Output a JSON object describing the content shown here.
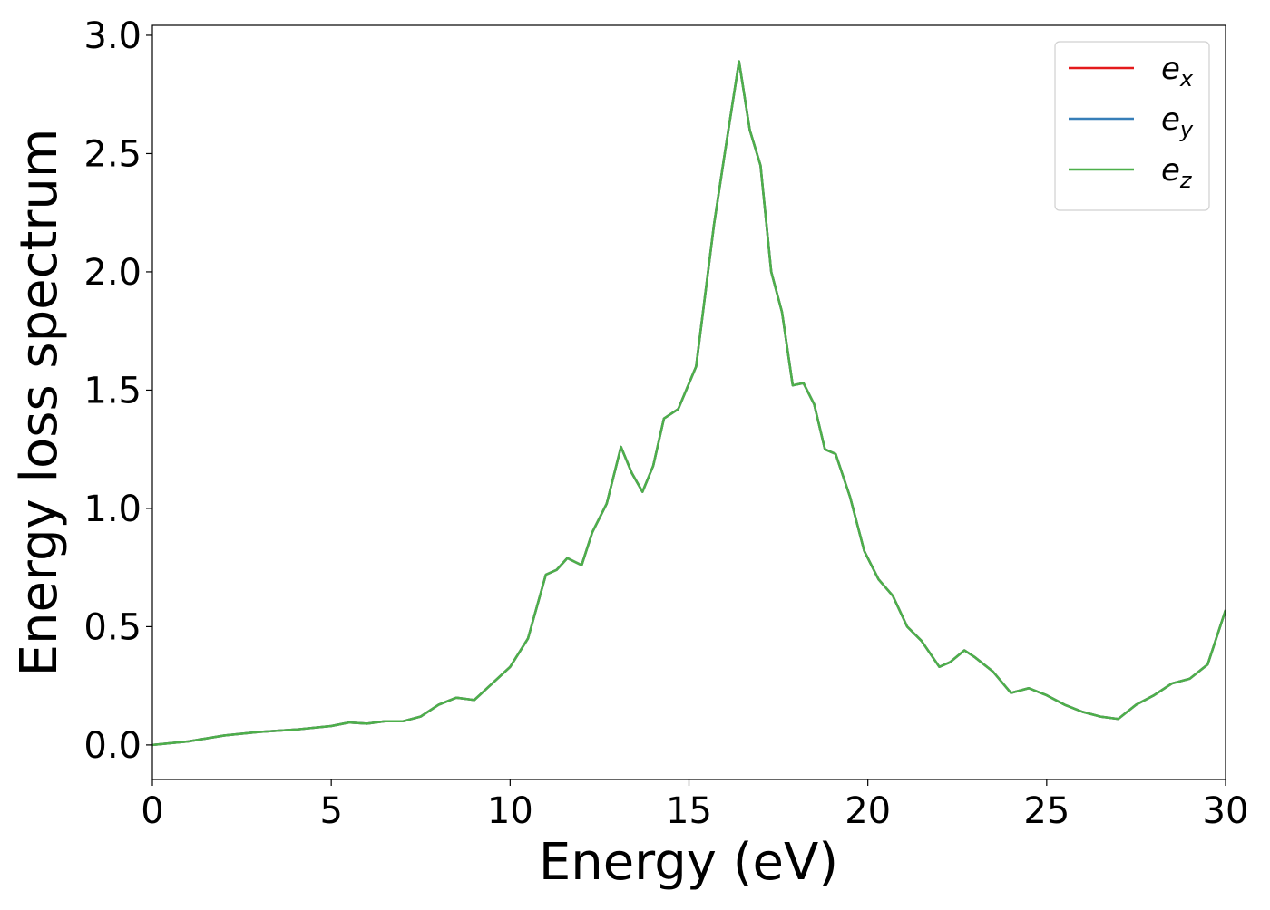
{
  "chart_data": {
    "type": "line",
    "xlabel": "Energy (eV)",
    "ylabel": "Energy loss spectrum",
    "x": [
      0,
      1,
      2,
      3,
      4,
      5,
      5.5,
      6,
      6.5,
      7,
      7.5,
      8,
      8.5,
      9,
      9.5,
      10,
      10.5,
      11,
      11.3,
      11.6,
      12,
      12.3,
      12.7,
      13.1,
      13.4,
      13.7,
      14,
      14.3,
      14.7,
      15.2,
      15.7,
      16.0,
      16.4,
      16.7,
      17.0,
      17.3,
      17.6,
      17.9,
      18.2,
      18.5,
      18.8,
      19.1,
      19.5,
      19.9,
      20.3,
      20.7,
      21.1,
      21.5,
      22.0,
      22.3,
      22.7,
      23.0,
      23.5,
      24.0,
      24.5,
      25.0,
      25.5,
      26.0,
      26.5,
      27.0,
      27.5,
      28.0,
      28.5,
      29.0,
      29.5,
      30.0
    ],
    "series": [
      {
        "name": "e_x",
        "color": "#e41a1c",
        "values": [
          0.0,
          0.015,
          0.04,
          0.055,
          0.065,
          0.08,
          0.095,
          0.09,
          0.1,
          0.1,
          0.12,
          0.17,
          0.2,
          0.19,
          0.26,
          0.33,
          0.45,
          0.72,
          0.74,
          0.79,
          0.76,
          0.9,
          1.02,
          1.26,
          1.15,
          1.07,
          1.18,
          1.38,
          1.42,
          1.6,
          2.2,
          2.5,
          2.89,
          2.6,
          2.45,
          2.0,
          1.83,
          1.52,
          1.53,
          1.44,
          1.25,
          1.23,
          1.05,
          0.82,
          0.7,
          0.63,
          0.5,
          0.44,
          0.33,
          0.35,
          0.4,
          0.37,
          0.31,
          0.22,
          0.24,
          0.21,
          0.17,
          0.14,
          0.12,
          0.11,
          0.17,
          0.21,
          0.26,
          0.28,
          0.34,
          0.57
        ]
      },
      {
        "name": "e_y",
        "color": "#377eb8",
        "values": [
          0.0,
          0.015,
          0.04,
          0.055,
          0.065,
          0.08,
          0.095,
          0.09,
          0.1,
          0.1,
          0.12,
          0.17,
          0.2,
          0.19,
          0.26,
          0.33,
          0.45,
          0.72,
          0.74,
          0.79,
          0.76,
          0.9,
          1.02,
          1.26,
          1.15,
          1.07,
          1.18,
          1.38,
          1.42,
          1.6,
          2.2,
          2.5,
          2.89,
          2.6,
          2.45,
          2.0,
          1.83,
          1.52,
          1.53,
          1.44,
          1.25,
          1.23,
          1.05,
          0.82,
          0.7,
          0.63,
          0.5,
          0.44,
          0.33,
          0.35,
          0.4,
          0.37,
          0.31,
          0.22,
          0.24,
          0.21,
          0.17,
          0.14,
          0.12,
          0.11,
          0.17,
          0.21,
          0.26,
          0.28,
          0.34,
          0.57
        ]
      },
      {
        "name": "e_z",
        "color": "#4daf4a",
        "values": [
          0.0,
          0.015,
          0.04,
          0.055,
          0.065,
          0.08,
          0.095,
          0.09,
          0.1,
          0.1,
          0.12,
          0.17,
          0.2,
          0.19,
          0.26,
          0.33,
          0.45,
          0.72,
          0.74,
          0.79,
          0.76,
          0.9,
          1.02,
          1.26,
          1.15,
          1.07,
          1.18,
          1.38,
          1.42,
          1.6,
          2.2,
          2.5,
          2.89,
          2.6,
          2.45,
          2.0,
          1.83,
          1.52,
          1.53,
          1.44,
          1.25,
          1.23,
          1.05,
          0.82,
          0.7,
          0.63,
          0.5,
          0.44,
          0.33,
          0.35,
          0.4,
          0.37,
          0.31,
          0.22,
          0.24,
          0.21,
          0.17,
          0.14,
          0.12,
          0.11,
          0.17,
          0.21,
          0.26,
          0.28,
          0.34,
          0.57
        ]
      }
    ],
    "xlim": [
      0,
      30
    ],
    "xticks": [
      0,
      5,
      10,
      15,
      20,
      25,
      30
    ],
    "ylim": [
      -0.146,
      3.042
    ],
    "yticks": [
      {
        "value": 0,
        "label": "0.0"
      },
      {
        "value": 0.5,
        "label": "0.5"
      },
      {
        "value": 1,
        "label": "1.0"
      },
      {
        "value": 1.5,
        "label": "1.5"
      },
      {
        "value": 2,
        "label": "2.0"
      },
      {
        "value": 2.5,
        "label": "2.5"
      },
      {
        "value": 3,
        "label": "3.0"
      }
    ],
    "legend": "upper right",
    "grid": false
  }
}
